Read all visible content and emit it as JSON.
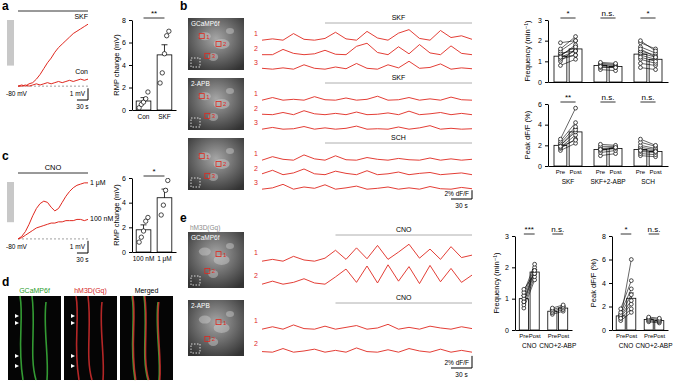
{
  "panel_labels": [
    "a",
    "b",
    "c",
    "d",
    "e"
  ],
  "chart_data": [
    {
      "type": "bar",
      "y_label": "RMP change (mV)",
      "categories": [
        "Con",
        "SKF"
      ],
      "values": [
        0.8,
        4.9
      ],
      "errors": [
        0.3,
        0.9
      ],
      "points": [
        [
          0.2,
          0.5,
          0.7,
          1.0,
          1.6
        ],
        [
          2.4,
          3.3,
          5.0,
          6.6,
          7.0
        ]
      ],
      "ylim": [
        0,
        8
      ],
      "yticks": [
        0,
        2,
        4,
        6,
        8
      ],
      "annotation": "**"
    },
    {
      "type": "bar",
      "y_label": "RMP change (mV)",
      "categories": [
        "100 nM",
        "1 μM"
      ],
      "values": [
        1.8,
        4.4
      ],
      "errors": [
        0.4,
        0.7
      ],
      "points": [
        [
          0.8,
          1.2,
          1.7,
          2.5,
          2.8
        ],
        [
          3.0,
          3.8,
          5.0,
          5.8
        ]
      ],
      "ylim": [
        0,
        6
      ],
      "yticks": [
        0,
        2,
        4,
        6
      ],
      "annotation": "*"
    },
    {
      "type": "paired_bar",
      "y_label": "Frequency (min⁻¹)",
      "ylim": [
        0,
        3
      ],
      "yticks": [
        0,
        1,
        2,
        3
      ],
      "tick_labels": "y",
      "groups": [
        {
          "values": [
            1.25,
            1.6
          ],
          "errors": [
            0.1,
            0.12
          ],
          "pre": [
            0.8,
            1.0,
            1.1,
            1.2,
            1.25,
            1.3,
            1.4,
            1.5,
            1.6,
            1.9,
            1.2
          ],
          "post": [
            1.1,
            1.6,
            1.3,
            1.5,
            1.8,
            1.7,
            1.5,
            2.0,
            2.2,
            2.0,
            1.3
          ],
          "annotation": "*"
        },
        {
          "values": [
            0.8,
            0.75
          ],
          "errors": [
            0.05,
            0.05
          ],
          "pre": [
            0.6,
            0.7,
            0.8,
            0.85,
            0.9,
            0.95,
            0.75
          ],
          "post": [
            0.55,
            0.7,
            0.75,
            0.8,
            0.85,
            0.9,
            0.7
          ],
          "annotation": "n.s."
        },
        {
          "values": [
            1.35,
            1.1
          ],
          "errors": [
            0.12,
            0.1
          ],
          "pre": [
            0.7,
            0.9,
            1.1,
            1.3,
            1.4,
            1.5,
            1.7,
            1.9,
            2.0,
            1.2,
            1.6
          ],
          "post": [
            0.6,
            0.8,
            0.9,
            1.1,
            1.2,
            1.3,
            1.4,
            1.6,
            1.5,
            1.0,
            1.2
          ],
          "annotation": "*"
        }
      ]
    },
    {
      "type": "paired_bar",
      "y_label": "Peak dF/F (%)",
      "ylim": [
        0,
        6
      ],
      "yticks": [
        0,
        2,
        4,
        6
      ],
      "x_labels": [
        "Pre",
        "Post"
      ],
      "groups": [
        {
          "name": "SKF",
          "values": [
            2.0,
            3.3
          ],
          "errors": [
            0.15,
            0.35
          ],
          "pre": [
            1.5,
            1.7,
            1.8,
            2.0,
            2.0,
            2.2,
            2.4,
            2.6,
            1.9
          ],
          "post": [
            2.2,
            2.6,
            3.0,
            3.3,
            3.5,
            3.8,
            4.2,
            5.6,
            2.5
          ],
          "annotation": "**"
        },
        {
          "name": "SKF+2-ABP",
          "values": [
            1.6,
            1.7
          ],
          "errors": [
            0.12,
            0.1
          ],
          "pre": [
            1.0,
            1.3,
            1.5,
            1.7,
            1.9,
            2.1,
            1.6
          ],
          "post": [
            1.2,
            1.5,
            1.7,
            1.8,
            1.9,
            2.0,
            1.8
          ],
          "annotation": "n.s."
        },
        {
          "name": "SCH",
          "values": [
            1.6,
            1.4
          ],
          "errors": [
            0.15,
            0.12
          ],
          "pre": [
            1.0,
            1.2,
            1.4,
            1.6,
            1.8,
            2.0,
            2.3,
            2.6,
            1.5
          ],
          "post": [
            0.9,
            1.1,
            1.3,
            1.5,
            1.6,
            1.7,
            1.9,
            2.0,
            1.4
          ],
          "annotation": "n.s."
        }
      ]
    },
    {
      "type": "paired_bar",
      "y_label": "Frequency (min⁻¹)",
      "ylim": [
        0,
        3
      ],
      "yticks": [
        0,
        1,
        2,
        3
      ],
      "x_labels": [
        "Pre",
        "Post"
      ],
      "groups": [
        {
          "name": "CNO",
          "values": [
            1.0,
            1.85
          ],
          "errors": [
            0.1,
            0.08
          ],
          "pre": [
            0.7,
            0.8,
            0.9,
            1.0,
            1.1,
            1.2,
            1.3,
            0.9
          ],
          "post": [
            1.6,
            1.7,
            1.8,
            1.9,
            2.0,
            2.1,
            1.8,
            1.9
          ],
          "annotation": "***"
        },
        {
          "name": "CNO+2-ABP",
          "values": [
            0.6,
            0.7
          ],
          "errors": [
            0.05,
            0.06
          ],
          "pre": [
            0.5,
            0.55,
            0.6,
            0.65,
            0.7
          ],
          "post": [
            0.6,
            0.65,
            0.7,
            0.75,
            0.8
          ],
          "annotation": "n.s."
        }
      ]
    },
    {
      "type": "paired_bar",
      "y_label": "Peak dF/F (%)",
      "ylim": [
        0,
        8
      ],
      "yticks": [
        0,
        2,
        4,
        6,
        8
      ],
      "x_labels": [
        "Pre",
        "Post"
      ],
      "groups": [
        {
          "name": "CNO",
          "values": [
            1.2,
            2.7
          ],
          "errors": [
            0.15,
            0.45
          ],
          "pre": [
            0.8,
            1.0,
            1.1,
            1.2,
            1.3,
            1.5,
            1.8,
            1.0
          ],
          "post": [
            1.5,
            1.8,
            2.2,
            2.5,
            3.0,
            3.5,
            4.2,
            6.0
          ],
          "annotation": "*"
        },
        {
          "name": "CNO+2-ABP",
          "values": [
            0.9,
            0.8
          ],
          "errors": [
            0.08,
            0.07
          ],
          "pre": [
            0.7,
            0.8,
            0.9,
            1.0,
            1.1
          ],
          "post": [
            0.6,
            0.7,
            0.8,
            0.9,
            1.0
          ],
          "annotation": "n.s."
        }
      ]
    }
  ],
  "traces_a": {
    "xlim": [
      0,
      190
    ],
    "ylim": [
      -0.5,
      6
    ],
    "x": [
      0,
      10,
      20,
      30,
      40,
      50,
      60,
      70,
      80,
      90,
      100,
      110,
      120,
      130,
      140,
      150,
      160,
      170,
      180,
      190
    ],
    "color": "#e0281f",
    "stimulus_onset": 0,
    "baseline": {
      "value": 0,
      "label": "-80 mV"
    },
    "scale_x": {
      "value": 30,
      "label": "30 s"
    },
    "scale_y": {
      "value": 1,
      "label": "1 mV"
    },
    "series": [
      {
        "name": "SKF",
        "values": [
          0,
          0.1,
          0,
          0.2,
          0.3,
          0.6,
          1.0,
          1.5,
          2.0,
          2.4,
          2.9,
          3.3,
          3.6,
          3.9,
          4.2,
          4.5,
          4.7,
          4.9,
          5.1,
          5.3
        ]
      },
      {
        "name": "Con",
        "values": [
          0,
          0,
          0.1,
          0,
          0.1,
          0.2,
          0.1,
          0.2,
          0.3,
          0.2,
          0.3,
          0.4,
          0.3,
          0.4,
          0.5,
          0.4,
          0.5,
          0.6,
          0.5,
          0.6
        ]
      }
    ]
  },
  "traces_c": {
    "xlim": [
      0,
      190
    ],
    "ylim": [
      -0.5,
      5
    ],
    "x": [
      0,
      10,
      20,
      30,
      40,
      50,
      60,
      70,
      80,
      90,
      100,
      110,
      120,
      130,
      140,
      150,
      160,
      170,
      180,
      190
    ],
    "color": "#e0281f",
    "stimulus": "CNO",
    "stimulus_onset": 0,
    "baseline": {
      "value": 0,
      "label": "-80 mV"
    },
    "scale_x": {
      "value": 30,
      "label": "30 s"
    },
    "scale_y": {
      "value": 1,
      "label": "1 mV"
    },
    "series": [
      {
        "name": "1 μM",
        "values": [
          0,
          0.2,
          0.6,
          1.2,
          1.9,
          2.5,
          2.9,
          3.1,
          3.0,
          2.6,
          2.3,
          2.5,
          3.0,
          3.5,
          3.9,
          4.2,
          4.4,
          4.5,
          4.6,
          4.6
        ]
      },
      {
        "name": "100 nM",
        "values": [
          0,
          0.1,
          0.3,
          0.5,
          0.7,
          0.9,
          1.0,
          1.1,
          1.2,
          1.3,
          1.3,
          1.4,
          1.4,
          1.5,
          1.5,
          1.5,
          1.6,
          1.6,
          1.5,
          1.6
        ]
      }
    ]
  },
  "imaging_b": {
    "xlim": [
      0,
      300
    ],
    "ylim": [
      -0.3,
      3
    ],
    "x": [
      0,
      15,
      30,
      45,
      60,
      75,
      90,
      105,
      120,
      135,
      150,
      165,
      180,
      195,
      210,
      225,
      240,
      255,
      270,
      285,
      300
    ],
    "color": "#e0281f",
    "stimulus_onset": 90,
    "scale_x": {
      "value": 30,
      "label": "30 s"
    },
    "scale_y": {
      "value": 2,
      "label": "2% dF/F"
    },
    "rows": [
      {
        "image_labels": [
          "GCaMP6f"
        ],
        "stimulus": "SKF",
        "rois": [
          {
            "name": "1",
            "values": [
              0,
              0.3,
              0,
              1.5,
              0.2,
              0,
              0.4,
              1.8,
              0.3,
              0,
              2.0,
              0.5,
              0,
              1.6,
              2.4,
              0.4,
              0,
              2.2,
              0.6,
              1.0,
              0.2
            ]
          },
          {
            "name": "2",
            "values": [
              0,
              0,
              1.2,
              0.3,
              0,
              0.2,
              1.0,
              0.1,
              0,
              1.9,
              2.6,
              0.5,
              0,
              1.8,
              0.2,
              2.3,
              0.4,
              0,
              2.0,
              0.3,
              0
            ]
          },
          {
            "name": "3",
            "values": [
              0.2,
              0,
              0.3,
              0,
              1.0,
              0.2,
              0,
              0.5,
              0.1,
              1.3,
              0.2,
              0,
              1.0,
              0.3,
              1.8,
              0.2,
              0.4,
              1.2,
              0,
              0.3,
              0.1
            ]
          }
        ]
      },
      {
        "image_labels": [
          "2-APB"
        ],
        "stimulus": "SKF",
        "rois": [
          {
            "name": "1",
            "values": [
              0,
              0.6,
              0,
              0.2,
              0,
              0.8,
              0.1,
              0,
              0.5,
              0,
              0.2,
              0.9,
              0,
              0.1,
              0.6,
              0,
              0.3,
              0,
              0.7,
              0.1,
              0
            ]
          },
          {
            "name": "2",
            "values": [
              0.1,
              0,
              0.5,
              0,
              0.9,
              0.2,
              0,
              0.3,
              0,
              0.6,
              0,
              0.1,
              0.4,
              0,
              0.8,
              0,
              0.2,
              0.5,
              0,
              0.3,
              0
            ]
          },
          {
            "name": "3",
            "values": [
              0,
              0.4,
              0,
              0.1,
              0.6,
              0,
              0.3,
              0,
              0.2,
              0.7,
              0,
              0.1,
              0,
              0.5,
              0,
              0.3,
              0.8,
              0,
              0.2,
              0,
              0.1
            ]
          }
        ]
      },
      {
        "image_labels": [],
        "stimulus": "SCH",
        "rois": [
          {
            "name": "1",
            "values": [
              0,
              0.8,
              0.2,
              0,
              1.2,
              0.3,
              0,
              1.0,
              0.1,
              0,
              0.6,
              0.2,
              0,
              0.4,
              0.1,
              0,
              0.5,
              0,
              0.3,
              0,
              0.2
            ]
          },
          {
            "name": "2",
            "values": [
              0.2,
              1.0,
              0,
              0.4,
              1.3,
              0.2,
              0,
              0.8,
              0.3,
              0,
              0.9,
              0,
              0.2,
              0.6,
              0,
              0.3,
              0.5,
              0,
              0.2,
              0.4,
              0
            ]
          },
          {
            "name": "3",
            "values": [
              0,
              0.3,
              1.1,
              0,
              0.5,
              0.2,
              1.0,
              0,
              0.3,
              0.7,
              0,
              0.2,
              0.5,
              0,
              0.3,
              0,
              0.6,
              0.1,
              0,
              0.4,
              0.1
            ]
          }
        ]
      }
    ]
  },
  "images_d": {
    "channels": [
      "GCaMP6f",
      "hM3D(Gq)",
      "Merged"
    ]
  },
  "imaging_e": {
    "xlim": [
      0,
      300
    ],
    "ylim": [
      -0.3,
      3.5
    ],
    "x": [
      0,
      15,
      30,
      45,
      60,
      75,
      90,
      105,
      120,
      135,
      150,
      165,
      180,
      195,
      210,
      225,
      240,
      255,
      270,
      285,
      300
    ],
    "color": "#e0281f",
    "stimulus_onset": 105,
    "scale_x": {
      "value": 30,
      "label": "30 s"
    },
    "scale_y": {
      "value": 2,
      "label": "2% dF/F"
    },
    "rows": [
      {
        "image_labels": [
          "hM3D(Gq)",
          "GCaMP6f"
        ],
        "stimulus": "CNO",
        "rois": [
          {
            "name": "1",
            "values": [
              0,
              0.3,
              0,
              0.8,
              0.2,
              0,
              0.5,
              1.8,
              0.3,
              2.2,
              0.4,
              2.6,
              0.3,
              1.5,
              2.8,
              0.5,
              2.0,
              0.3,
              2.4,
              0.6,
              1.0
            ]
          },
          {
            "name": "2",
            "values": [
              0,
              0.5,
              0,
              0.3,
              0.9,
              0.2,
              0,
              1.2,
              2.5,
              0.3,
              3.0,
              0.2,
              3.2,
              0.5,
              2.9,
              0.1,
              3.1,
              0.4,
              2.6,
              0.3,
              1.5
            ]
          }
        ]
      },
      {
        "image_labels": [
          "2-APB"
        ],
        "stimulus": "CNO",
        "rois": [
          {
            "name": "1",
            "values": [
              0,
              0.4,
              0,
              0.7,
              0.1,
              0,
              0.5,
              0,
              0.3,
              0.6,
              0,
              0.2,
              0.8,
              0,
              0.3,
              0,
              0.5,
              0.2,
              0,
              0.4,
              0.1
            ]
          },
          {
            "name": "2",
            "values": [
              0.1,
              0,
              0.6,
              0,
              0.2,
              0.5,
              0,
              0.3,
              0,
              0.7,
              0.1,
              0,
              0.4,
              0,
              0.6,
              0.2,
              0,
              0.5,
              0,
              0.3,
              0
            ]
          }
        ]
      }
    ]
  }
}
